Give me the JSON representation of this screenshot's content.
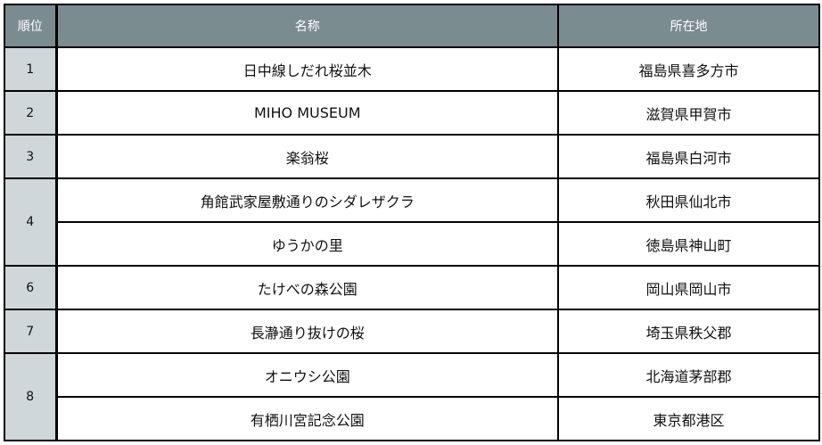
{
  "header": {
    "rank": "順位",
    "name": "名称",
    "location": "所在地"
  },
  "rows": [
    {
      "rank": "1",
      "name": "日中線しだれ桜並木",
      "location": "福島県喜多方市"
    },
    {
      "rank": "2",
      "name": "MIHO MUSEUM",
      "location": "滋賀県甲賀市"
    },
    {
      "rank": "3",
      "name": "楽翁桜",
      "location": "福島県白河市"
    },
    {
      "rank": "4",
      "name": "角館武家屋敷通りのシダレザクラ",
      "location": "秋田県仙北市"
    },
    {
      "rank": "",
      "name": "ゆうかの里",
      "location": "徳島県神山町"
    },
    {
      "rank": "6",
      "name": "たけべの森公園",
      "location": "岡山県岡山市"
    },
    {
      "rank": "7",
      "name": "長瀞通り抜けの桜",
      "location": "埼玉県秩父郡"
    },
    {
      "rank": "8",
      "name": "オニウシ公園",
      "location": "北海道茅部郡"
    },
    {
      "rank": "",
      "name": "有栖川宮記念公園",
      "location": "東京都港区"
    }
  ],
  "colors": {
    "header_bg": "#7b8c91",
    "rank_bg": "#d0d7da",
    "border": "#000000"
  }
}
